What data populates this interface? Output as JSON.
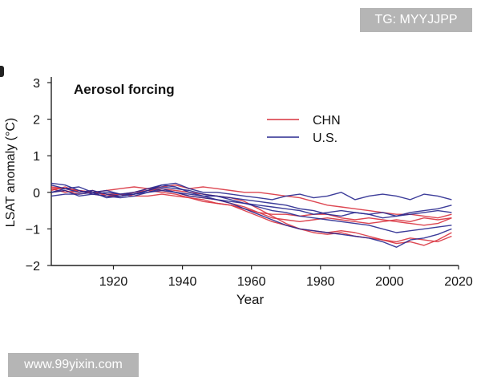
{
  "watermarks": {
    "top": "TG: MYYJJPP",
    "bottom": "www.99yixin.com"
  },
  "chart_data": {
    "type": "line",
    "title": "Aerosol forcing",
    "xlabel": "Year",
    "ylabel": "LSAT anomaly (°C)",
    "xlim": [
      1902,
      2020
    ],
    "ylim": [
      -2,
      3
    ],
    "xticks": [
      1920,
      1940,
      1960,
      1980,
      2000,
      2020
    ],
    "yticks": [
      3,
      2,
      1,
      0,
      -1,
      -2
    ],
    "xtick_labels": [
      "1920",
      "1940",
      "1960",
      "1980",
      "2000",
      "2020"
    ],
    "ytick_labels": [
      "3",
      "2",
      "1",
      "0",
      "−1",
      "−2"
    ],
    "legend": [
      {
        "label": "CHN",
        "color": "#d9333f"
      },
      {
        "label": "U.S.",
        "color": "#28288f"
      }
    ],
    "legend_position": "upper-right",
    "x": [
      1902,
      1906,
      1910,
      1914,
      1918,
      1922,
      1926,
      1930,
      1934,
      1938,
      1942,
      1946,
      1950,
      1954,
      1958,
      1962,
      1966,
      1970,
      1974,
      1978,
      1982,
      1986,
      1990,
      1994,
      1998,
      2002,
      2006,
      2010,
      2014,
      2018
    ],
    "series": [
      {
        "name": "CHN",
        "color": "#d9333f",
        "values": [
          0.05,
          0.15,
          0.0,
          0.05,
          -0.1,
          -0.05,
          0.0,
          0.05,
          0.1,
          0.05,
          0.0,
          -0.05,
          -0.1,
          -0.15,
          -0.25,
          -0.45,
          -0.65,
          -0.85,
          -1.0,
          -1.05,
          -1.1,
          -1.05,
          -1.1,
          -1.2,
          -1.3,
          -1.4,
          -1.35,
          -1.45,
          -1.3,
          -1.1
        ]
      },
      {
        "name": "CHN",
        "color": "#d9333f",
        "values": [
          0.1,
          0.0,
          0.05,
          -0.05,
          -0.1,
          -0.1,
          0.0,
          0.1,
          0.05,
          0.0,
          -0.1,
          -0.15,
          -0.2,
          -0.3,
          -0.4,
          -0.55,
          -0.7,
          -0.75,
          -0.8,
          -0.75,
          -0.7,
          -0.75,
          -0.8,
          -0.85,
          -0.8,
          -0.75,
          -0.8,
          -0.7,
          -0.75,
          -0.7
        ]
      },
      {
        "name": "CHN",
        "color": "#d9333f",
        "values": [
          0.0,
          0.05,
          -0.05,
          0.0,
          0.05,
          0.1,
          0.15,
          0.1,
          0.15,
          0.2,
          0.1,
          0.15,
          0.1,
          0.05,
          0.0,
          0.0,
          -0.05,
          -0.1,
          -0.15,
          -0.25,
          -0.35,
          -0.4,
          -0.45,
          -0.5,
          -0.55,
          -0.6,
          -0.6,
          -0.65,
          -0.7,
          -0.6
        ]
      },
      {
        "name": "CHN",
        "color": "#d9333f",
        "values": [
          0.15,
          0.1,
          0.05,
          0.0,
          -0.05,
          -0.05,
          -0.1,
          -0.1,
          -0.05,
          -0.1,
          -0.15,
          -0.25,
          -0.3,
          -0.35,
          -0.45,
          -0.55,
          -0.6,
          -0.6,
          -0.65,
          -0.6,
          -0.6,
          -0.7,
          -0.75,
          -0.7,
          -0.75,
          -0.8,
          -0.85,
          -0.9,
          -0.85,
          -0.7
        ]
      },
      {
        "name": "CHN",
        "color": "#d9333f",
        "values": [
          0.1,
          0.1,
          0.05,
          0.0,
          -0.05,
          -0.1,
          -0.05,
          0.05,
          0.0,
          -0.05,
          -0.15,
          -0.2,
          -0.3,
          -0.35,
          -0.5,
          -0.65,
          -0.8,
          -0.9,
          -1.0,
          -1.1,
          -1.15,
          -1.1,
          -1.2,
          -1.25,
          -1.3,
          -1.35,
          -1.25,
          -1.3,
          -1.35,
          -1.2
        ]
      },
      {
        "name": "U.S.",
        "color": "#28288f",
        "values": [
          0.0,
          0.1,
          0.15,
          0.0,
          0.05,
          -0.05,
          -0.05,
          0.05,
          0.2,
          0.25,
          0.1,
          0.0,
          0.0,
          -0.05,
          -0.1,
          -0.15,
          -0.2,
          -0.1,
          -0.05,
          -0.15,
          -0.1,
          0.0,
          -0.2,
          -0.1,
          -0.05,
          -0.1,
          -0.2,
          -0.05,
          -0.1,
          -0.2
        ]
      },
      {
        "name": "U.S.",
        "color": "#28288f",
        "values": [
          0.25,
          0.2,
          0.05,
          -0.05,
          -0.1,
          -0.15,
          -0.1,
          0.0,
          0.05,
          0.0,
          -0.1,
          -0.15,
          -0.2,
          -0.3,
          -0.45,
          -0.6,
          -0.75,
          -0.9,
          -1.0,
          -1.05,
          -1.1,
          -1.15,
          -1.2,
          -1.25,
          -1.35,
          -1.5,
          -1.3,
          -1.25,
          -1.15,
          -1.0
        ]
      },
      {
        "name": "U.S.",
        "color": "#28288f",
        "values": [
          0.0,
          0.05,
          -0.1,
          -0.05,
          0.0,
          -0.05,
          0.0,
          0.1,
          0.2,
          0.15,
          0.0,
          -0.1,
          -0.2,
          -0.25,
          -0.3,
          -0.35,
          -0.4,
          -0.45,
          -0.5,
          -0.6,
          -0.55,
          -0.5,
          -0.55,
          -0.6,
          -0.55,
          -0.65,
          -0.55,
          -0.5,
          -0.45,
          -0.35
        ]
      },
      {
        "name": "U.S.",
        "color": "#28288f",
        "values": [
          -0.1,
          -0.05,
          -0.05,
          0.0,
          -0.15,
          -0.1,
          -0.05,
          0.0,
          0.1,
          0.0,
          -0.05,
          -0.1,
          -0.1,
          -0.15,
          -0.2,
          -0.25,
          -0.3,
          -0.35,
          -0.45,
          -0.5,
          -0.6,
          -0.65,
          -0.55,
          -0.6,
          -0.7,
          -0.65,
          -0.6,
          -0.55,
          -0.5,
          -0.55
        ]
      },
      {
        "name": "U.S.",
        "color": "#28288f",
        "values": [
          0.2,
          0.1,
          0.0,
          0.05,
          -0.05,
          -0.1,
          -0.05,
          0.05,
          0.15,
          0.1,
          0.05,
          -0.05,
          -0.1,
          -0.2,
          -0.3,
          -0.4,
          -0.5,
          -0.55,
          -0.65,
          -0.7,
          -0.75,
          -0.8,
          -0.85,
          -0.9,
          -1.0,
          -1.1,
          -1.05,
          -1.0,
          -0.95,
          -0.9
        ]
      }
    ]
  }
}
